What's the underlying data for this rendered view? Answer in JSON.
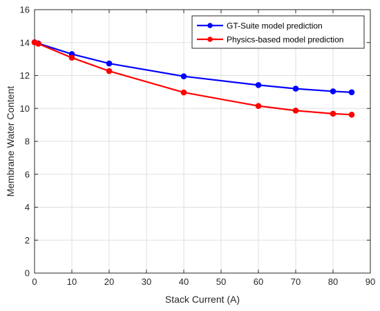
{
  "chart_data": {
    "type": "line",
    "xlabel": "Stack Current (A)",
    "ylabel": "Membrane Water Content",
    "xlim": [
      0,
      90
    ],
    "ylim": [
      0,
      16
    ],
    "xticks": [
      0,
      10,
      20,
      30,
      40,
      50,
      60,
      70,
      80,
      90
    ],
    "yticks": [
      0,
      2,
      4,
      6,
      8,
      10,
      12,
      14,
      16
    ],
    "grid": true,
    "legend_position": "top-right",
    "series": [
      {
        "name": "GT-Suite model prediction",
        "color": "#0000ff",
        "x": [
          0,
          1,
          10,
          20,
          40,
          60,
          70,
          80,
          85
        ],
        "y": [
          14.02,
          13.95,
          13.3,
          12.73,
          11.95,
          11.42,
          11.2,
          11.04,
          10.98
        ]
      },
      {
        "name": "Physics-based model prediction",
        "color": "#ff0000",
        "x": [
          0,
          1,
          10,
          20,
          40,
          60,
          70,
          80,
          85
        ],
        "y": [
          14.02,
          13.93,
          13.08,
          12.27,
          10.97,
          10.15,
          9.87,
          9.68,
          9.62
        ]
      }
    ]
  }
}
